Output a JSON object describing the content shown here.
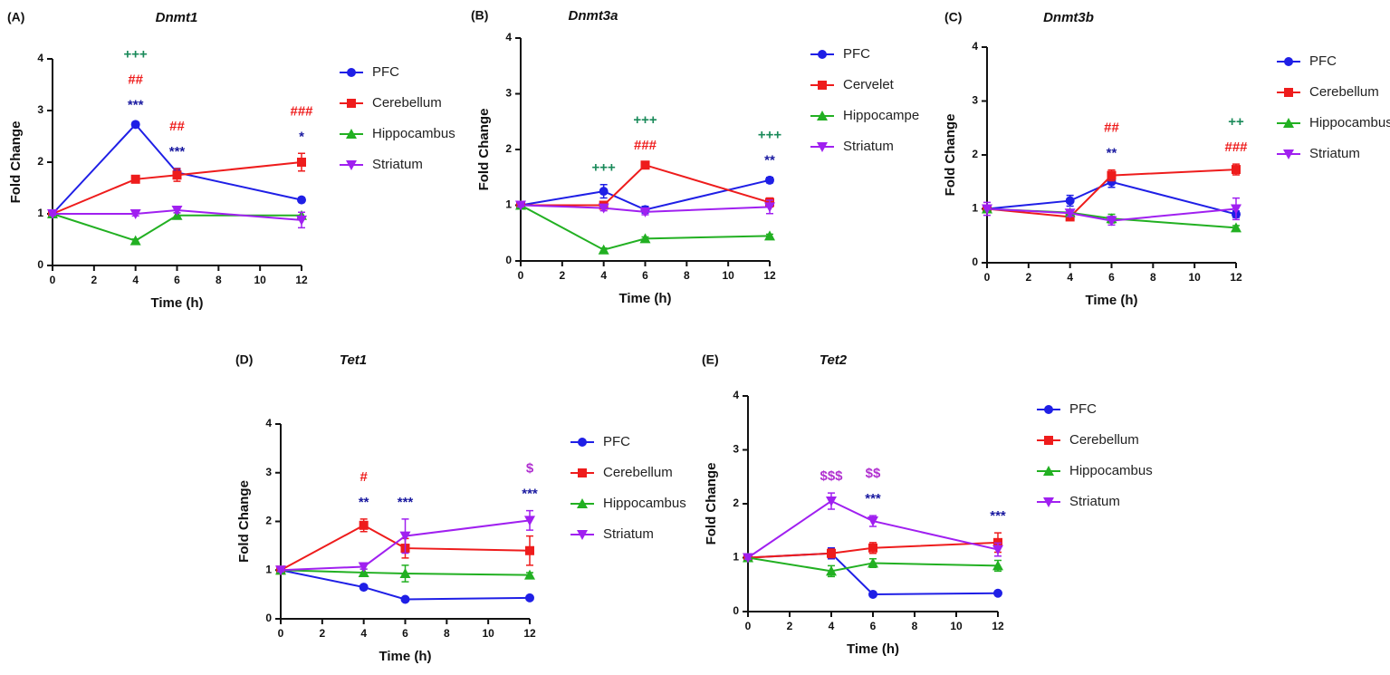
{
  "chart_data": [
    {
      "type": "line",
      "panel_label": "(A)",
      "title": "Dnmt1",
      "xlabel": "Time (h)",
      "ylabel": "Fold Change",
      "x": [
        0,
        4,
        6,
        12
      ],
      "xlim": [
        0,
        12
      ],
      "xticks": [
        0,
        2,
        4,
        6,
        8,
        10,
        12
      ],
      "ylim": [
        0,
        4
      ],
      "yticks": [
        0,
        1,
        2,
        3,
        4
      ],
      "series": [
        {
          "name": "PFC",
          "color": "#1f1fe6",
          "marker": "circle",
          "values": [
            1,
            2.73,
            1.8,
            1.27
          ],
          "errors": [
            0.03,
            0.05,
            0.08,
            0.04
          ]
        },
        {
          "name": "Cerebellum",
          "color": "#ee1c1c",
          "marker": "square",
          "values": [
            1,
            1.67,
            1.75,
            2.0
          ],
          "errors": [
            0.03,
            0.06,
            0.12,
            0.17
          ]
        },
        {
          "name": "Hippocambus",
          "color": "#22b022",
          "marker": "triangle-up",
          "values": [
            1,
            0.48,
            0.97,
            0.97
          ],
          "errors": [
            0.03,
            0.03,
            0.05,
            0.06
          ]
        },
        {
          "name": "Striatum",
          "color": "#a020f0",
          "marker": "triangle-down",
          "values": [
            1,
            1.0,
            1.07,
            0.88
          ],
          "errors": [
            0.03,
            0.04,
            0.05,
            0.15
          ]
        }
      ],
      "annotations": [
        {
          "x": 4,
          "text": "+++",
          "color": "#1a8a5a"
        },
        {
          "x": 4,
          "text": "##",
          "color": "#ee1c1c"
        },
        {
          "x": 4,
          "text": "***",
          "color": "#1a1aa0"
        },
        {
          "x": 6,
          "text": "##",
          "color": "#ee1c1c"
        },
        {
          "x": 6,
          "text": "***",
          "color": "#1a1aa0"
        },
        {
          "x": 12,
          "text": "###",
          "color": "#ee1c1c"
        },
        {
          "x": 12,
          "text": "*",
          "color": "#1a1aa0"
        }
      ]
    },
    {
      "type": "line",
      "panel_label": "(B)",
      "title": "Dnmt3a",
      "xlabel": "Time (h)",
      "ylabel": "Fold Change",
      "x": [
        0,
        4,
        6,
        12
      ],
      "xlim": [
        0,
        12
      ],
      "xticks": [
        0,
        2,
        4,
        6,
        8,
        10,
        12
      ],
      "ylim": [
        0,
        4
      ],
      "yticks": [
        0,
        1,
        2,
        3,
        4
      ],
      "series": [
        {
          "name": "PFC",
          "color": "#1f1fe6",
          "marker": "circle",
          "values": [
            1,
            1.25,
            0.92,
            1.45
          ],
          "errors": [
            0.03,
            0.12,
            0.06,
            0.05
          ]
        },
        {
          "name": "Cervelet",
          "color": "#ee1c1c",
          "marker": "square",
          "values": [
            1,
            1.0,
            1.72,
            1.05
          ],
          "errors": [
            0.03,
            0.05,
            0.05,
            0.08
          ]
        },
        {
          "name": "Hippocampe",
          "color": "#22b022",
          "marker": "triangle-up",
          "values": [
            1,
            0.2,
            0.4,
            0.45
          ],
          "errors": [
            0.03,
            0.03,
            0.03,
            0.03
          ]
        },
        {
          "name": "Striatum",
          "color": "#a020f0",
          "marker": "triangle-down",
          "values": [
            1,
            0.95,
            0.88,
            0.97
          ],
          "errors": [
            0.03,
            0.05,
            0.05,
            0.12
          ]
        }
      ],
      "annotations": [
        {
          "x": 4,
          "text": "+++",
          "color": "#1a8a5a"
        },
        {
          "x": 6,
          "text": "+++",
          "color": "#1a8a5a"
        },
        {
          "x": 6,
          "text": "###",
          "color": "#ee1c1c"
        },
        {
          "x": 12,
          "text": "+++",
          "color": "#1a8a5a"
        },
        {
          "x": 12,
          "text": "**",
          "color": "#1a1aa0"
        }
      ]
    },
    {
      "type": "line",
      "panel_label": "(C)",
      "title": "Dnmt3b",
      "xlabel": "Time (h)",
      "ylabel": "Fold Change",
      "x": [
        0,
        4,
        6,
        12
      ],
      "xlim": [
        0,
        12
      ],
      "xticks": [
        0,
        2,
        4,
        6,
        8,
        10,
        12
      ],
      "ylim": [
        0,
        4
      ],
      "yticks": [
        0,
        1,
        2,
        3,
        4
      ],
      "series": [
        {
          "name": "PFC",
          "color": "#1f1fe6",
          "marker": "circle",
          "values": [
            1,
            1.15,
            1.5,
            0.9
          ],
          "errors": [
            0.05,
            0.1,
            0.1,
            0.06
          ]
        },
        {
          "name": "Cerebellum",
          "color": "#ee1c1c",
          "marker": "square",
          "values": [
            1,
            0.85,
            1.62,
            1.73
          ],
          "errors": [
            0.05,
            0.06,
            0.1,
            0.1
          ]
        },
        {
          "name": "Hippocambus",
          "color": "#22b022",
          "marker": "triangle-up",
          "values": [
            1,
            0.93,
            0.82,
            0.65
          ],
          "errors": [
            0.05,
            0.05,
            0.08,
            0.04
          ]
        },
        {
          "name": "Striatum",
          "color": "#a020f0",
          "marker": "triangle-down",
          "values": [
            1,
            0.92,
            0.78,
            1.0
          ],
          "errors": [
            0.12,
            0.06,
            0.08,
            0.2
          ]
        }
      ],
      "annotations": [
        {
          "x": 6,
          "text": "##",
          "color": "#ee1c1c"
        },
        {
          "x": 6,
          "text": "**",
          "color": "#1a1aa0"
        },
        {
          "x": 12,
          "text": "++",
          "color": "#1a8a5a"
        },
        {
          "x": 12,
          "text": "###",
          "color": "#ee1c1c"
        }
      ]
    },
    {
      "type": "line",
      "panel_label": "(D)",
      "title": "Tet1",
      "xlabel": "Time (h)",
      "ylabel": "Fold Change",
      "x": [
        0,
        4,
        6,
        12
      ],
      "xlim": [
        0,
        12
      ],
      "xticks": [
        0,
        2,
        4,
        6,
        8,
        10,
        12
      ],
      "ylim": [
        0,
        4
      ],
      "yticks": [
        0,
        1,
        2,
        3,
        4
      ],
      "series": [
        {
          "name": "PFC",
          "color": "#1f1fe6",
          "marker": "circle",
          "values": [
            1,
            0.65,
            0.4,
            0.43
          ],
          "errors": [
            0.03,
            0.04,
            0.03,
            0.03
          ]
        },
        {
          "name": "Cerebellum",
          "color": "#ee1c1c",
          "marker": "square",
          "values": [
            1,
            1.92,
            1.45,
            1.4
          ],
          "errors": [
            0.03,
            0.13,
            0.2,
            0.3
          ]
        },
        {
          "name": "Hippocambus",
          "color": "#22b022",
          "marker": "triangle-up",
          "values": [
            1,
            0.95,
            0.93,
            0.9
          ],
          "errors": [
            0.03,
            0.07,
            0.17,
            0.05
          ]
        },
        {
          "name": "Striatum",
          "color": "#a020f0",
          "marker": "triangle-down",
          "values": [
            1,
            1.07,
            1.7,
            2.02
          ],
          "errors": [
            0.03,
            0.05,
            0.35,
            0.2
          ]
        }
      ],
      "annotations": [
        {
          "x": 4,
          "text": "#",
          "color": "#ee1c1c"
        },
        {
          "x": 4,
          "text": "**",
          "color": "#1a1aa0"
        },
        {
          "x": 6,
          "text": "***",
          "color": "#1a1aa0"
        },
        {
          "x": 12,
          "text": "$",
          "color": "#b030d0"
        },
        {
          "x": 12,
          "text": "***",
          "color": "#1a1aa0"
        }
      ]
    },
    {
      "type": "line",
      "panel_label": "(E)",
      "title": "Tet2",
      "xlabel": "Time (h)",
      "ylabel": "Fold Change",
      "x": [
        0,
        4,
        6,
        12
      ],
      "xlim": [
        0,
        12
      ],
      "xticks": [
        0,
        2,
        4,
        6,
        8,
        10,
        12
      ],
      "ylim": [
        0,
        4
      ],
      "yticks": [
        0,
        1,
        2,
        3,
        4
      ],
      "series": [
        {
          "name": "PFC",
          "color": "#1f1fe6",
          "marker": "circle",
          "values": [
            1,
            1.08,
            0.32,
            0.34
          ],
          "errors": [
            0.03,
            0.1,
            0.03,
            0.03
          ]
        },
        {
          "name": "Cerebellum",
          "color": "#ee1c1c",
          "marker": "square",
          "values": [
            1,
            1.08,
            1.18,
            1.28
          ],
          "errors": [
            0.03,
            0.08,
            0.1,
            0.18
          ]
        },
        {
          "name": "Hippocambus",
          "color": "#22b022",
          "marker": "triangle-up",
          "values": [
            1,
            0.75,
            0.9,
            0.85
          ],
          "errors": [
            0.03,
            0.1,
            0.08,
            0.1
          ]
        },
        {
          "name": "Striatum",
          "color": "#a020f0",
          "marker": "triangle-down",
          "values": [
            1,
            2.05,
            1.68,
            1.15
          ],
          "errors": [
            0.03,
            0.15,
            0.1,
            0.12
          ]
        }
      ],
      "annotations": [
        {
          "x": 4,
          "text": "$$$",
          "color": "#b030d0"
        },
        {
          "x": 6,
          "text": "$$",
          "color": "#b030d0"
        },
        {
          "x": 6,
          "text": "***",
          "color": "#1a1aa0"
        },
        {
          "x": 12,
          "text": "***",
          "color": "#1a1aa0"
        }
      ]
    }
  ]
}
